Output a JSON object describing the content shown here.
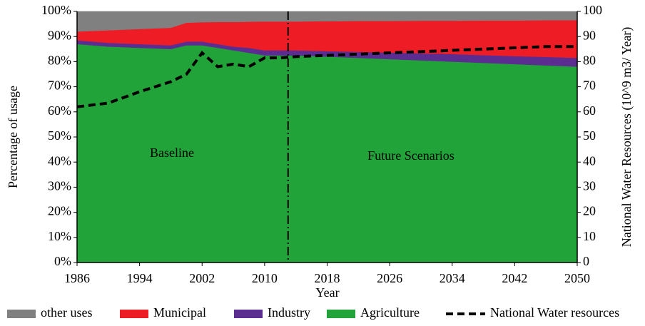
{
  "chart_data": {
    "type": "area",
    "stacked": true,
    "x_label": "Year",
    "y_label": "Percentage of usage",
    "y2_label": "National Water Resources (10^9 m3/ Year)",
    "annotations": [
      "Baseline",
      "Future Scenarios"
    ],
    "divider_x": 2013,
    "x": [
      1986,
      1990,
      1994,
      1998,
      2000,
      2002,
      2004,
      2006,
      2008,
      2010,
      2012,
      2014,
      2018,
      2022,
      2026,
      2030,
      2034,
      2038,
      2042,
      2046,
      2050
    ],
    "series": [
      {
        "name": "Agriculture",
        "color": "#21a33a",
        "values": [
          87,
          86,
          85.5,
          85,
          86.5,
          86.5,
          85.5,
          84.5,
          83.5,
          82.5,
          82.5,
          82.5,
          82,
          81.5,
          81,
          80.5,
          80,
          79.5,
          79,
          78.5,
          78
        ]
      },
      {
        "name": "Industry",
        "color": "#5c2d91",
        "values": [
          1.5,
          1.5,
          1.5,
          1.5,
          1.5,
          1.5,
          1.5,
          1.5,
          2,
          2,
          2,
          2,
          2.2,
          2.4,
          2.6,
          2.8,
          3,
          3.1,
          3.2,
          3.4,
          3.5
        ]
      },
      {
        "name": "Municipal",
        "color": "#ee1c25",
        "values": [
          3.5,
          5,
          6,
          7,
          7.5,
          7.7,
          8.8,
          9.8,
          10.4,
          11.5,
          11.5,
          11.5,
          11.9,
          12.3,
          12.6,
          13,
          13.3,
          13.8,
          14.2,
          14.6,
          15
        ]
      },
      {
        "name": "other uses",
        "color": "#808080",
        "values": [
          8,
          7.5,
          7,
          6.5,
          4.5,
          4.3,
          4.2,
          4.2,
          4.1,
          4,
          4,
          4,
          3.9,
          3.8,
          3.8,
          3.7,
          3.7,
          3.6,
          3.6,
          3.5,
          3.5
        ]
      },
      {
        "name": "National Water resources",
        "type": "line",
        "axis": "y2",
        "color": "#000000",
        "dashed": true,
        "values": [
          62,
          63.5,
          68,
          72,
          75,
          83.5,
          78,
          79,
          78,
          81.5,
          81.5,
          82,
          82.5,
          83,
          83.5,
          84,
          84.5,
          85,
          85.5,
          86,
          86
        ]
      }
    ],
    "xlim": [
      1986,
      2050
    ],
    "xticks": [
      1986,
      1994,
      2002,
      2010,
      2018,
      2026,
      2034,
      2042,
      2050
    ],
    "ylim": [
      0,
      100
    ],
    "yticks": [
      {
        "value": 0,
        "label": "0%"
      },
      {
        "value": 10,
        "label": "10%"
      },
      {
        "value": 20,
        "label": "20%"
      },
      {
        "value": 30,
        "label": "30%"
      },
      {
        "value": 40,
        "label": "40%"
      },
      {
        "value": 50,
        "label": "50%"
      },
      {
        "value": 60,
        "label": "60%"
      },
      {
        "value": 70,
        "label": "70%"
      },
      {
        "value": 80,
        "label": "80%"
      },
      {
        "value": 90,
        "label": "90%"
      },
      {
        "value": 100,
        "label": "100%"
      }
    ],
    "y2lim": [
      0,
      100
    ],
    "y2ticks": [
      0,
      10,
      20,
      30,
      40,
      50,
      60,
      70,
      80,
      90,
      100
    ],
    "legend": "bottom"
  }
}
